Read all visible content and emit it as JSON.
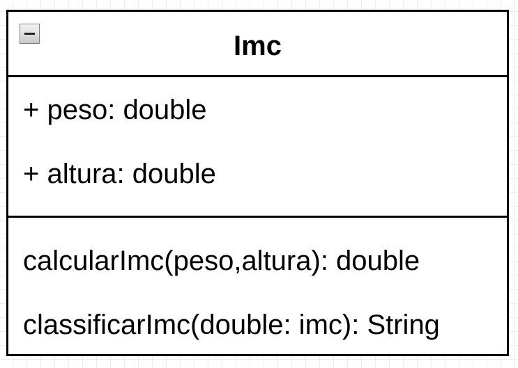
{
  "uml_class": {
    "name": "Imc",
    "attributes": [
      {
        "text": "+ peso: double"
      },
      {
        "text": "+ altura: double"
      }
    ],
    "methods": [
      {
        "text": "calcularImc(peso,altura): double"
      },
      {
        "text": "classificarImc(double: imc): String"
      }
    ]
  },
  "icons": {
    "collapse": "minus-collapse-icon"
  },
  "colors": {
    "border": "#000000",
    "grid": "#ececec",
    "background": "#ffffff"
  }
}
